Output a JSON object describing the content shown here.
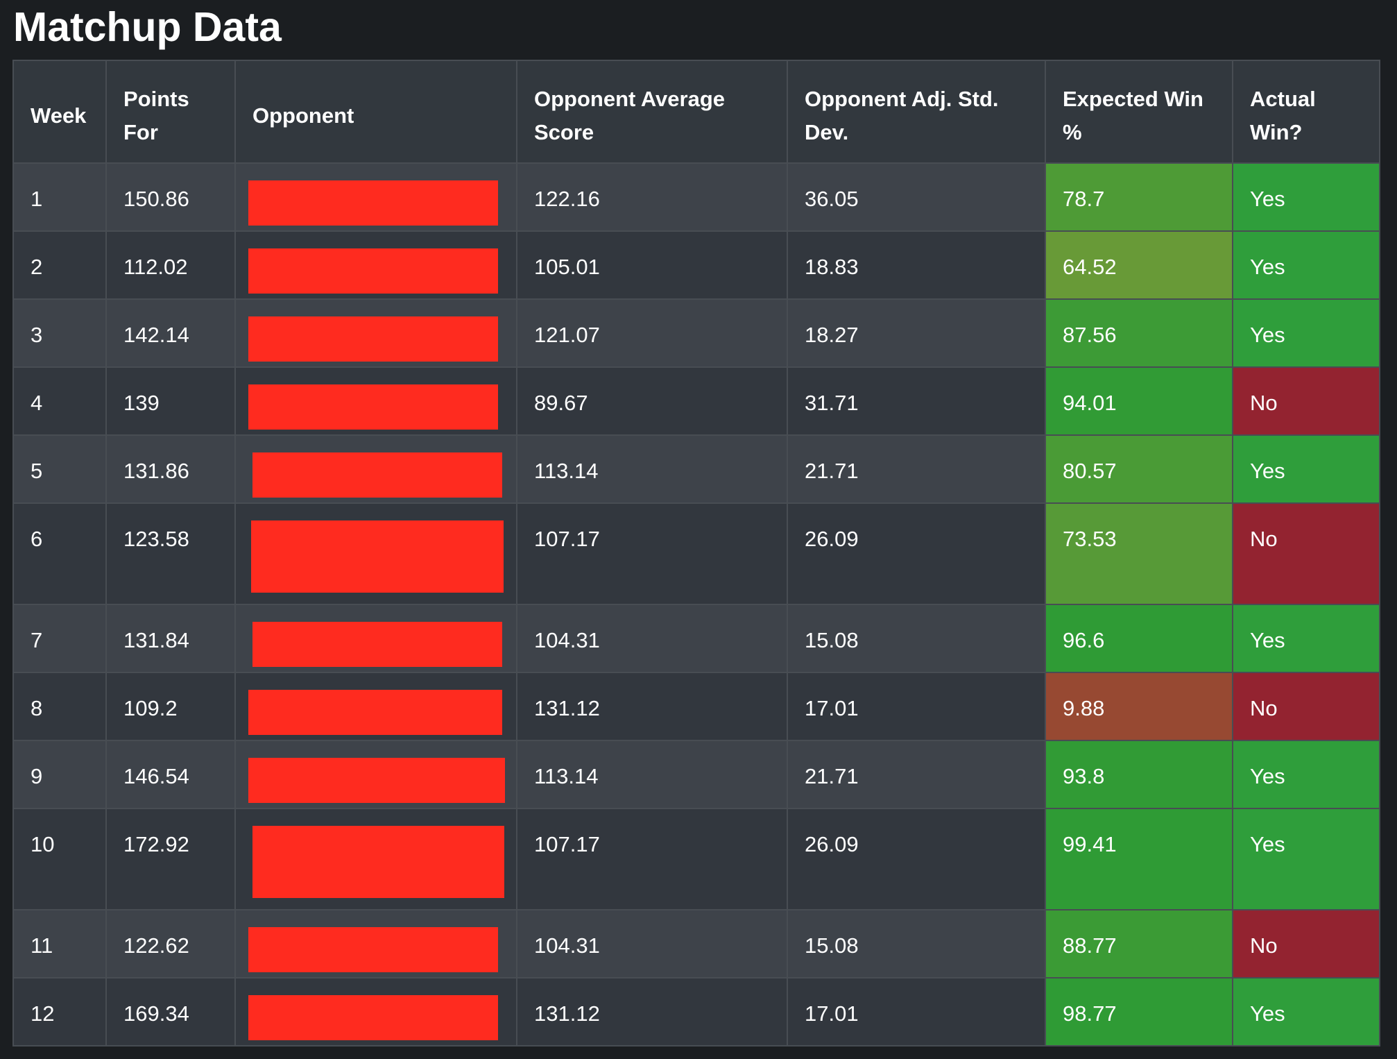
{
  "title": "Matchup Data",
  "columns": [
    "Week",
    "Points For",
    "Opponent",
    "Opponent Average Score",
    "Opponent Adj. Std. Dev.",
    "Expected Win %",
    "Actual Win?"
  ],
  "rows": [
    {
      "week": "1",
      "points_for": "150.86",
      "opp_avg": "122.16",
      "opp_std": "36.05",
      "exp_win": "78.7",
      "actual": "Yes"
    },
    {
      "week": "2",
      "points_for": "112.02",
      "opp_avg": "105.01",
      "opp_std": "18.83",
      "exp_win": "64.52",
      "actual": "Yes"
    },
    {
      "week": "3",
      "points_for": "142.14",
      "opp_avg": "121.07",
      "opp_std": "18.27",
      "exp_win": "87.56",
      "actual": "Yes"
    },
    {
      "week": "4",
      "points_for": "139",
      "opp_avg": "89.67",
      "opp_std": "31.71",
      "exp_win": "94.01",
      "actual": "No"
    },
    {
      "week": "5",
      "points_for": "131.86",
      "opp_avg": "113.14",
      "opp_std": "21.71",
      "exp_win": "80.57",
      "actual": "Yes"
    },
    {
      "week": "6",
      "points_for": "123.58",
      "opp_avg": "107.17",
      "opp_std": "26.09",
      "exp_win": "73.53",
      "actual": "No"
    },
    {
      "week": "7",
      "points_for": "131.84",
      "opp_avg": "104.31",
      "opp_std": "15.08",
      "exp_win": "96.6",
      "actual": "Yes"
    },
    {
      "week": "8",
      "points_for": "109.2",
      "opp_avg": "131.12",
      "opp_std": "17.01",
      "exp_win": "9.88",
      "actual": "No"
    },
    {
      "week": "9",
      "points_for": "146.54",
      "opp_avg": "113.14",
      "opp_std": "21.71",
      "exp_win": "93.8",
      "actual": "Yes"
    },
    {
      "week": "10",
      "points_for": "172.92",
      "opp_avg": "107.17",
      "opp_std": "26.09",
      "exp_win": "99.41",
      "actual": "Yes"
    },
    {
      "week": "11",
      "points_for": "122.62",
      "opp_avg": "104.31",
      "opp_std": "15.08",
      "exp_win": "88.77",
      "actual": "No"
    },
    {
      "week": "12",
      "points_for": "169.34",
      "opp_avg": "131.12",
      "opp_std": "17.01",
      "exp_win": "98.77",
      "actual": "Yes"
    }
  ],
  "colors": {
    "page_background": "#1b1e21",
    "header_background": "#32383e",
    "row_odd": "#3e434a",
    "row_even": "#32373e",
    "border": "#484d53",
    "redaction": "#ff2b1f",
    "win_yes": "#2f9e3b",
    "win_no": "#932330",
    "exp_win_high": "#2f9b35",
    "exp_win_low": "#9e3530"
  }
}
